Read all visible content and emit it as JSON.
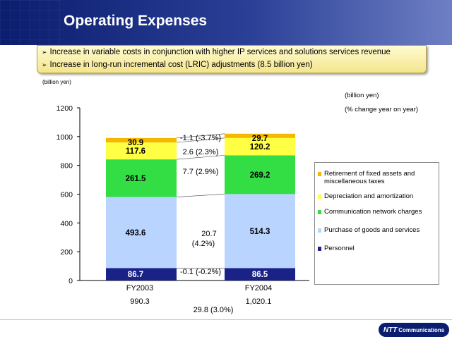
{
  "header": {
    "title": "Operating Expenses"
  },
  "bullets": [
    "Increase in variable costs in conjunction with higher IP services and solutions services revenue",
    "Increase in long-run incremental cost (LRIC) adjustments (8.5 billion yen)"
  ],
  "bullet_marker": "➢",
  "unit_left": "(billion yen)",
  "right_notes": {
    "unit": "(billion yen)",
    "change": "(% change year on year)"
  },
  "logo": {
    "mark": "NTT",
    "text": "Communications"
  },
  "colors": {
    "retirement": "#f5b800",
    "depreciation": "#ffff44",
    "communication": "#33dd44",
    "purchase": "#b8d4ff",
    "personnel": "#1a2288"
  },
  "chart_data": {
    "type": "bar",
    "stacked": true,
    "ylim": [
      0,
      1200
    ],
    "yticks": [
      "0",
      "200",
      "400",
      "600",
      "800",
      "1000",
      "1200"
    ],
    "categories": [
      "FY2003",
      "FY2004"
    ],
    "totals": [
      "990.3",
      "1,020.1"
    ],
    "total_change": "29.8 (3.0%)",
    "series": [
      {
        "name": "Personnel",
        "values": [
          86.7,
          86.5
        ],
        "labels": [
          "86.7",
          "86.5"
        ],
        "change": "-0.1 (-0.2%)",
        "color_key": "personnel"
      },
      {
        "name": "Purchase of goods and services",
        "values": [
          493.6,
          514.3
        ],
        "labels": [
          "493.6",
          "514.3"
        ],
        "change_lines": [
          "20.7",
          "(4.2%)"
        ],
        "color_key": "purchase"
      },
      {
        "name": "Communication network charges",
        "values": [
          261.5,
          269.2
        ],
        "labels": [
          "261.5",
          "269.2"
        ],
        "change": "7.7 (2.9%)",
        "color_key": "communication"
      },
      {
        "name": "Depreciation and amortization",
        "values": [
          117.6,
          120.2
        ],
        "labels": [
          "117.6",
          "120.2"
        ],
        "change": "2.6 (2.3%)",
        "color_key": "depreciation"
      },
      {
        "name": "Retirement of fixed assets and miscellaneous taxes",
        "values": [
          30.9,
          29.7
        ],
        "labels": [
          "30.9",
          "29.7"
        ],
        "change": "-1.1 (-3.7%)",
        "color_key": "retirement"
      }
    ],
    "legend": [
      {
        "lines": [
          "Retirement of fixed assets and",
          "miscellaneous taxes"
        ],
        "color_key": "retirement"
      },
      {
        "lines": [
          "Depreciation and amortization"
        ],
        "color_key": "depreciation"
      },
      {
        "lines": [
          "Communication network charges"
        ],
        "color_key": "communication"
      },
      {
        "lines": [
          " Purchase of goods and services"
        ],
        "color_key": "purchase"
      },
      {
        "lines": [
          "Personnel"
        ],
        "color_key": "personnel"
      }
    ]
  }
}
